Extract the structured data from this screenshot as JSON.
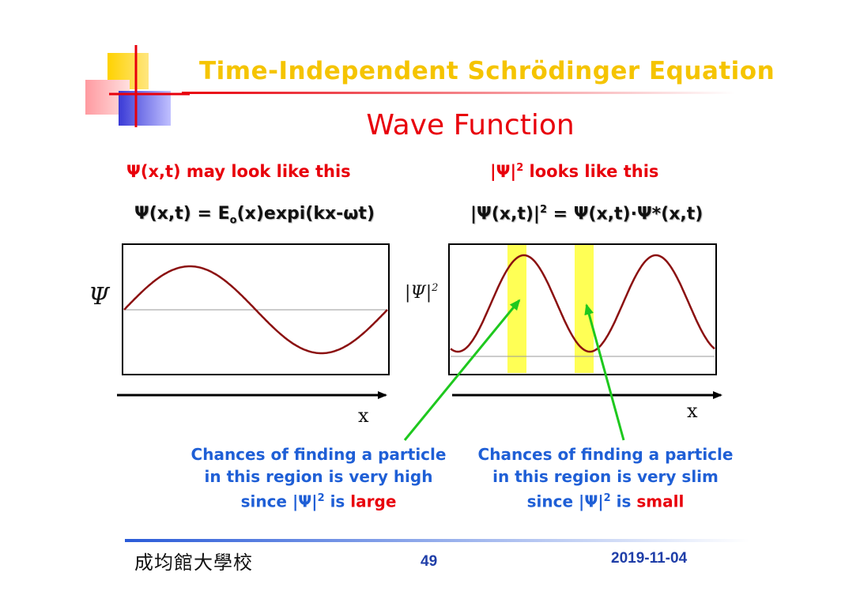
{
  "header": {
    "title": "Time-Independent Schrӧdinger Equation",
    "subtitle": "Wave Function"
  },
  "left_panel": {
    "caption_symbol": "Ψ",
    "caption_text": "(x,t) may look like this",
    "equation_main": "Ψ(x,t) = E",
    "equation_sub": "o",
    "equation_rest": "(x)expi(kx-ωt)",
    "y_axis_label": "Ψ",
    "x_axis_label": "x"
  },
  "right_panel": {
    "caption_abs": "|Ψ|",
    "caption_sup": "2",
    "caption_text": " looks like this",
    "equation_left": "|Ψ(x,t)|",
    "equation_sup": "2",
    "equation_right": " = Ψ(x,t)·Ψ*(x,t)",
    "y_axis_label": "|Ψ|",
    "y_axis_sup": "2",
    "x_axis_label": "x"
  },
  "notes": {
    "high": {
      "line1": "Chances of finding a particle",
      "line2": "in this region is very high",
      "line3_pre": "since |Ψ|",
      "line3_sup": "2",
      "line3_mid": " is ",
      "line3_word": "large"
    },
    "slim": {
      "line1": "Chances of finding a particle",
      "line2": "in this region is very slim",
      "line3_pre": "since |Ψ|",
      "line3_sup": "2",
      "line3_mid": " is ",
      "line3_word": "small"
    }
  },
  "footer": {
    "school": "成均館大學校",
    "page_number": "49",
    "date": "2019-11-04"
  },
  "colors": {
    "title": "#f5c400",
    "subtitle": "#e8000b",
    "curve": "#8b1010",
    "highlight": "#ffff55",
    "arrow": "#1ec81e",
    "note_text": "#1f5fd6"
  }
}
